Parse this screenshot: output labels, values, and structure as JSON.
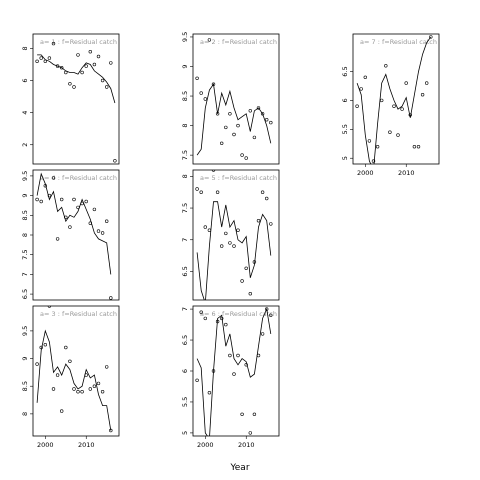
{
  "chart_data": {
    "type": "scatter",
    "xlabel": "Year",
    "xlim": [
      1997,
      2018
    ],
    "xticks": [
      2000,
      2010
    ],
    "panels": [
      {
        "label": "a= 1  :  f=Residual catch",
        "ylim": [
          0.8,
          8.9
        ],
        "yticks": [
          2,
          4,
          6,
          8
        ],
        "points": [
          [
            1998,
            7.2
          ],
          [
            1999,
            7.4
          ],
          [
            2000,
            7.2
          ],
          [
            2001,
            7.4
          ],
          [
            2002,
            8.3
          ],
          [
            2003,
            6.9
          ],
          [
            2004,
            6.8
          ],
          [
            2005,
            6.5
          ],
          [
            2006,
            5.8
          ],
          [
            2007,
            5.6
          ],
          [
            2008,
            7.6
          ],
          [
            2009,
            6.5
          ],
          [
            2010,
            6.9
          ],
          [
            2011,
            7.8
          ],
          [
            2012,
            7.0
          ],
          [
            2013,
            7.5
          ],
          [
            2014,
            6.0
          ],
          [
            2015,
            5.6
          ],
          [
            2016,
            7.1
          ],
          [
            2017,
            1.0
          ]
        ],
        "line": [
          [
            1998,
            7.6
          ],
          [
            1999,
            7.6
          ],
          [
            2000,
            7.3
          ],
          [
            2001,
            7.2
          ],
          [
            2002,
            7.0
          ],
          [
            2003,
            6.9
          ],
          [
            2004,
            6.8
          ],
          [
            2005,
            6.6
          ],
          [
            2006,
            6.5
          ],
          [
            2007,
            6.5
          ],
          [
            2008,
            6.4
          ],
          [
            2009,
            6.8
          ],
          [
            2010,
            7.1
          ],
          [
            2011,
            7.0
          ],
          [
            2012,
            6.6
          ],
          [
            2013,
            6.4
          ],
          [
            2014,
            6.2
          ],
          [
            2015,
            5.9
          ],
          [
            2016,
            5.5
          ],
          [
            2017,
            4.6
          ]
        ]
      },
      {
        "label": "a= 2  :  f=Residual catch",
        "ylim": [
          7.35,
          9.55
        ],
        "yticks": [
          7.5,
          8.0,
          8.5,
          9.0,
          9.5
        ],
        "points": [
          [
            1998,
            8.8
          ],
          [
            1999,
            8.55
          ],
          [
            2000,
            8.45
          ],
          [
            2001,
            9.45
          ],
          [
            2002,
            8.7
          ],
          [
            2003,
            8.2
          ],
          [
            2004,
            7.7
          ],
          [
            2005,
            7.97
          ],
          [
            2006,
            8.2
          ],
          [
            2007,
            7.85
          ],
          [
            2008,
            8.0
          ],
          [
            2009,
            7.5
          ],
          [
            2010,
            7.45
          ],
          [
            2011,
            8.25
          ],
          [
            2012,
            7.8
          ],
          [
            2013,
            8.3
          ],
          [
            2014,
            8.2
          ],
          [
            2015,
            8.1
          ],
          [
            2016,
            8.05
          ]
        ],
        "line": [
          [
            1998,
            7.5
          ],
          [
            1999,
            7.6
          ],
          [
            2000,
            8.3
          ],
          [
            2001,
            8.6
          ],
          [
            2002,
            8.7
          ],
          [
            2003,
            8.2
          ],
          [
            2004,
            8.55
          ],
          [
            2005,
            8.35
          ],
          [
            2006,
            8.58
          ],
          [
            2007,
            8.3
          ],
          [
            2008,
            8.1
          ],
          [
            2009,
            8.15
          ],
          [
            2010,
            8.2
          ],
          [
            2011,
            7.9
          ],
          [
            2012,
            8.25
          ],
          [
            2013,
            8.3
          ],
          [
            2014,
            8.2
          ],
          [
            2015,
            8.0
          ],
          [
            2016,
            7.7
          ]
        ]
      },
      {
        "label": "a= 7  :  f=Residual catch",
        "ylim": [
          4.9,
          7.15
        ],
        "yticks": [
          5.0,
          5.5,
          6.0,
          6.5
        ],
        "points": [
          [
            1998,
            5.9
          ],
          [
            1999,
            6.2
          ],
          [
            2000,
            6.4
          ],
          [
            2001,
            5.3
          ],
          [
            2002,
            4.95
          ],
          [
            2003,
            5.2
          ],
          [
            2004,
            6.0
          ],
          [
            2005,
            6.6
          ],
          [
            2006,
            5.45
          ],
          [
            2007,
            5.9
          ],
          [
            2008,
            5.4
          ],
          [
            2009,
            5.85
          ],
          [
            2010,
            6.3
          ],
          [
            2011,
            5.75
          ],
          [
            2012,
            5.2
          ],
          [
            2013,
            5.2
          ],
          [
            2014,
            6.1
          ],
          [
            2015,
            6.3
          ],
          [
            2016,
            7.1
          ]
        ],
        "line": [
          [
            1998,
            6.3
          ],
          [
            1999,
            6.1
          ],
          [
            2000,
            5.4
          ],
          [
            2001,
            4.95
          ],
          [
            2002,
            4.8
          ],
          [
            2003,
            5.6
          ],
          [
            2004,
            6.3
          ],
          [
            2005,
            6.45
          ],
          [
            2006,
            6.2
          ],
          [
            2007,
            6.0
          ],
          [
            2008,
            5.85
          ],
          [
            2009,
            5.9
          ],
          [
            2010,
            6.05
          ],
          [
            2011,
            5.7
          ],
          [
            2012,
            6.1
          ],
          [
            2013,
            6.5
          ],
          [
            2014,
            6.8
          ],
          [
            2015,
            7.0
          ],
          [
            2016,
            7.1
          ]
        ]
      },
      {
        "label": "a= 4  :  f=Residual catch",
        "ylim": [
          6.35,
          9.65
        ],
        "yticks": [
          6.5,
          7.0,
          7.5,
          8.0,
          8.5,
          9.0,
          9.5
        ],
        "points": [
          [
            1998,
            8.9
          ],
          [
            1999,
            8.85
          ],
          [
            2000,
            9.25
          ],
          [
            2001,
            9.0
          ],
          [
            2002,
            9.45
          ],
          [
            2003,
            7.9
          ],
          [
            2004,
            8.9
          ],
          [
            2005,
            8.45
          ],
          [
            2006,
            8.2
          ],
          [
            2007,
            8.9
          ],
          [
            2008,
            8.7
          ],
          [
            2009,
            8.8
          ],
          [
            2010,
            8.85
          ],
          [
            2011,
            8.3
          ],
          [
            2012,
            8.65
          ],
          [
            2013,
            8.1
          ],
          [
            2014,
            8.05
          ],
          [
            2015,
            8.35
          ],
          [
            2016,
            6.4
          ]
        ],
        "line": [
          [
            1998,
            9.0
          ],
          [
            1999,
            9.55
          ],
          [
            2000,
            9.3
          ],
          [
            2001,
            8.9
          ],
          [
            2002,
            9.1
          ],
          [
            2003,
            8.6
          ],
          [
            2004,
            8.7
          ],
          [
            2005,
            8.35
          ],
          [
            2006,
            8.5
          ],
          [
            2007,
            8.45
          ],
          [
            2008,
            8.6
          ],
          [
            2009,
            8.9
          ],
          [
            2010,
            8.65
          ],
          [
            2011,
            8.4
          ],
          [
            2012,
            8.05
          ],
          [
            2013,
            7.9
          ],
          [
            2014,
            7.85
          ],
          [
            2015,
            7.8
          ],
          [
            2016,
            7.0
          ]
        ]
      },
      {
        "label": "a= 5  :  f=Residual catch",
        "ylim": [
          6.05,
          8.1
        ],
        "yticks": [
          6.5,
          7.0,
          7.5,
          8.0
        ],
        "points": [
          [
            1998,
            7.8
          ],
          [
            1999,
            7.75
          ],
          [
            2000,
            7.2
          ],
          [
            2001,
            7.15
          ],
          [
            2002,
            8.1
          ],
          [
            2003,
            7.75
          ],
          [
            2004,
            6.9
          ],
          [
            2005,
            7.1
          ],
          [
            2006,
            6.95
          ],
          [
            2007,
            6.9
          ],
          [
            2008,
            7.15
          ],
          [
            2009,
            6.35
          ],
          [
            2010,
            6.55
          ],
          [
            2011,
            6.15
          ],
          [
            2012,
            6.65
          ],
          [
            2013,
            7.3
          ],
          [
            2014,
            7.75
          ],
          [
            2015,
            7.65
          ],
          [
            2016,
            7.25
          ]
        ],
        "line": [
          [
            1998,
            6.8
          ],
          [
            1999,
            6.2
          ],
          [
            2000,
            6.0
          ],
          [
            2001,
            6.9
          ],
          [
            2002,
            7.6
          ],
          [
            2003,
            7.6
          ],
          [
            2004,
            7.2
          ],
          [
            2005,
            7.55
          ],
          [
            2006,
            7.2
          ],
          [
            2007,
            7.3
          ],
          [
            2008,
            7.0
          ],
          [
            2009,
            6.95
          ],
          [
            2010,
            7.05
          ],
          [
            2011,
            6.4
          ],
          [
            2012,
            6.6
          ],
          [
            2013,
            7.2
          ],
          [
            2014,
            7.4
          ],
          [
            2015,
            7.3
          ],
          [
            2016,
            6.75
          ]
        ]
      },
      {
        "label": "a= 3  :  f=Residual catch",
        "ylim": [
          7.6,
          9.95
        ],
        "yticks": [
          8.0,
          8.5,
          9.0,
          9.5
        ],
        "points": [
          [
            1998,
            8.9
          ],
          [
            1999,
            9.2
          ],
          [
            2000,
            9.25
          ],
          [
            2001,
            9.95
          ],
          [
            2002,
            8.45
          ],
          [
            2003,
            8.7
          ],
          [
            2004,
            8.05
          ],
          [
            2005,
            9.2
          ],
          [
            2006,
            8.95
          ],
          [
            2007,
            8.45
          ],
          [
            2008,
            8.4
          ],
          [
            2009,
            8.4
          ],
          [
            2010,
            8.7
          ],
          [
            2011,
            8.45
          ],
          [
            2012,
            8.5
          ],
          [
            2013,
            8.55
          ],
          [
            2014,
            8.4
          ],
          [
            2015,
            8.85
          ],
          [
            2016,
            7.7
          ]
        ],
        "line": [
          [
            1998,
            8.2
          ],
          [
            1999,
            9.15
          ],
          [
            2000,
            9.5
          ],
          [
            2001,
            9.3
          ],
          [
            2002,
            8.75
          ],
          [
            2003,
            8.85
          ],
          [
            2004,
            8.7
          ],
          [
            2005,
            8.9
          ],
          [
            2006,
            8.8
          ],
          [
            2007,
            8.55
          ],
          [
            2008,
            8.45
          ],
          [
            2009,
            8.5
          ],
          [
            2010,
            8.8
          ],
          [
            2011,
            8.65
          ],
          [
            2012,
            8.7
          ],
          [
            2013,
            8.35
          ],
          [
            2014,
            8.15
          ],
          [
            2015,
            8.15
          ],
          [
            2016,
            7.7
          ]
        ]
      },
      {
        "label": "a= 6  :  f=Residual catch",
        "ylim": [
          4.95,
          7.05
        ],
        "yticks": [
          5.0,
          5.5,
          6.0,
          6.5,
          7.0
        ],
        "points": [
          [
            1998,
            5.85
          ],
          [
            1999,
            6.95
          ],
          [
            2000,
            6.85
          ],
          [
            2001,
            5.65
          ],
          [
            2002,
            6.0
          ],
          [
            2003,
            6.8
          ],
          [
            2004,
            6.85
          ],
          [
            2005,
            6.75
          ],
          [
            2006,
            6.25
          ],
          [
            2007,
            5.95
          ],
          [
            2008,
            6.25
          ],
          [
            2009,
            5.3
          ],
          [
            2010,
            6.1
          ],
          [
            2011,
            5.0
          ],
          [
            2012,
            5.3
          ],
          [
            2013,
            6.25
          ],
          [
            2014,
            6.6
          ],
          [
            2015,
            7.0
          ],
          [
            2016,
            6.9
          ]
        ],
        "line": [
          [
            1998,
            6.2
          ],
          [
            1999,
            6.05
          ],
          [
            2000,
            5.0
          ],
          [
            2001,
            4.9
          ],
          [
            2002,
            6.0
          ],
          [
            2003,
            6.85
          ],
          [
            2004,
            6.9
          ],
          [
            2005,
            6.4
          ],
          [
            2006,
            6.6
          ],
          [
            2007,
            6.2
          ],
          [
            2008,
            6.1
          ],
          [
            2009,
            6.2
          ],
          [
            2010,
            6.15
          ],
          [
            2011,
            5.9
          ],
          [
            2012,
            5.95
          ],
          [
            2013,
            6.4
          ],
          [
            2014,
            6.85
          ],
          [
            2015,
            7.0
          ],
          [
            2016,
            6.6
          ]
        ]
      }
    ]
  }
}
